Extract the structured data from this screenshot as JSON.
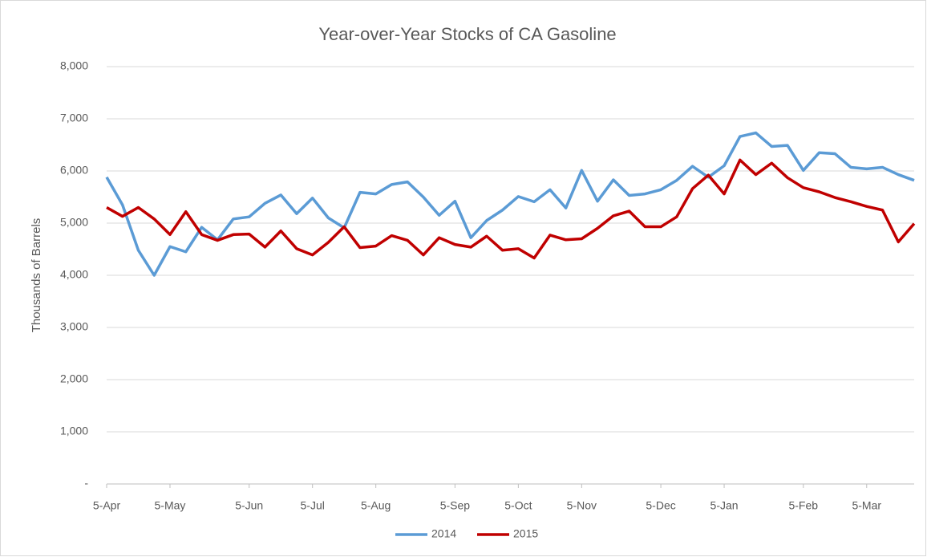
{
  "chart_data": {
    "type": "line",
    "title": "Year-over-Year Stocks of CA Gasoline",
    "y_label": "Thousands of Barrels",
    "categories": [
      "5-Apr",
      null,
      null,
      null,
      "5-May",
      null,
      null,
      null,
      null,
      "5-Jun",
      null,
      null,
      null,
      "5-Jul",
      null,
      null,
      null,
      "5-Aug",
      null,
      null,
      null,
      null,
      "5-Sep",
      null,
      null,
      null,
      "5-Oct",
      null,
      null,
      null,
      "5-Nov",
      null,
      null,
      null,
      null,
      "5-Dec",
      null,
      null,
      null,
      "5-Jan",
      null,
      null,
      null,
      null,
      "5-Feb",
      null,
      null,
      null,
      "5-Mar",
      null,
      null,
      null
    ],
    "series": [
      {
        "name": "2014",
        "color": "#5b9bd5",
        "values": [
          5880,
          5350,
          4480,
          4000,
          4550,
          4450,
          4920,
          4680,
          5080,
          5120,
          5380,
          5540,
          5180,
          5480,
          5100,
          4910,
          5590,
          5560,
          5740,
          5790,
          5500,
          5150,
          5420,
          4720,
          5050,
          5250,
          5510,
          5410,
          5640,
          5290,
          6010,
          5420,
          5830,
          5530,
          5560,
          5640,
          5820,
          6090,
          5880,
          6100,
          6660,
          6730,
          6470,
          6490,
          6010,
          6350,
          6330,
          6070,
          6040,
          6070,
          5930,
          5820
        ]
      },
      {
        "name": "2015",
        "color": "#c00000",
        "values": [
          5300,
          5130,
          5300,
          5080,
          4780,
          5220,
          4780,
          4670,
          4780,
          4790,
          4540,
          4850,
          4510,
          4390,
          4630,
          4930,
          4530,
          4560,
          4760,
          4670,
          4390,
          4720,
          4590,
          4540,
          4750,
          4480,
          4510,
          4330,
          4770,
          4680,
          4700,
          4900,
          5140,
          5230,
          4930,
          4930,
          5120,
          5660,
          5920,
          5560,
          6210,
          5930,
          6150,
          5870,
          5680,
          5600,
          5490,
          5410,
          5320,
          5250,
          4640,
          4990
        ]
      }
    ],
    "ylim": [
      0,
      8000
    ],
    "yticks": [
      {
        "value": 0,
        "label": "-"
      },
      {
        "value": 1000,
        "label": "1,000"
      },
      {
        "value": 2000,
        "label": "2,000"
      },
      {
        "value": 3000,
        "label": "3,000"
      },
      {
        "value": 4000,
        "label": "4,000"
      },
      {
        "value": 5000,
        "label": "5,000"
      },
      {
        "value": 6000,
        "label": "6,000"
      },
      {
        "value": 7000,
        "label": "7,000"
      },
      {
        "value": 8000,
        "label": "8,000"
      }
    ],
    "grid": true,
    "legend": "bottom"
  }
}
